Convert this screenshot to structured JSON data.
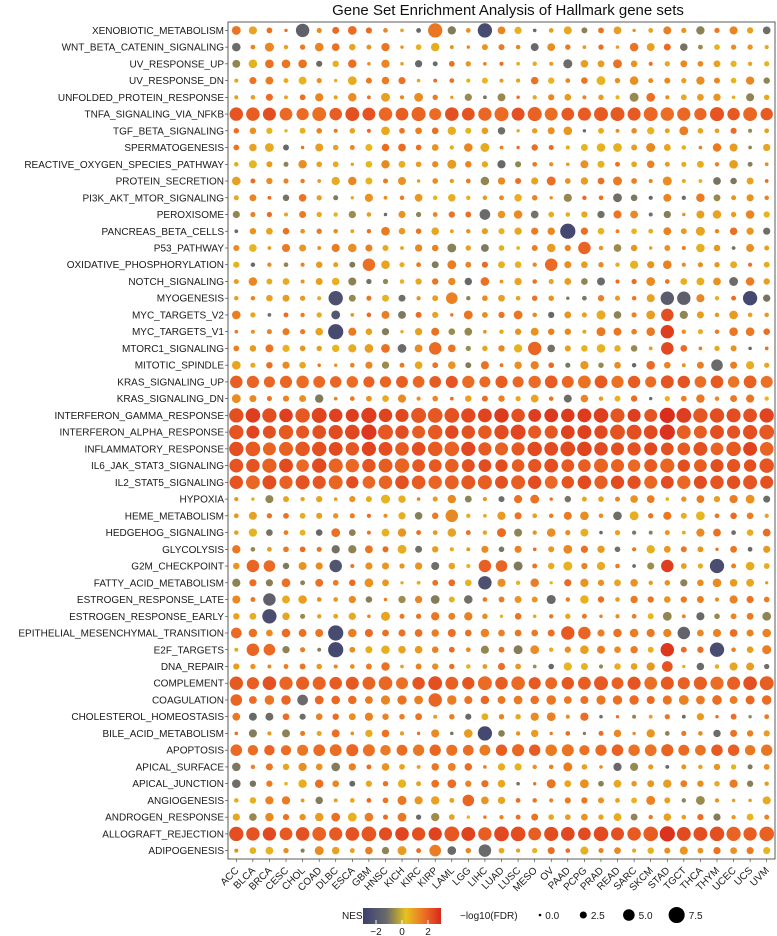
{
  "chart_data": {
    "type": "bubble-grid",
    "title": "Gene Set Enrichment Analysis of Hallmark gene sets",
    "xlabel": "",
    "ylabel": "",
    "x_categories": [
      "ACC",
      "BLCA",
      "BRCA",
      "CESC",
      "CHOL",
      "COAD",
      "DLBC",
      "ESCA",
      "GBM",
      "HNSC",
      "KICH",
      "KIRC",
      "KIRP",
      "LAML",
      "LGG",
      "LIHC",
      "LUAD",
      "LUSC",
      "MESO",
      "OV",
      "PAAD",
      "PCPG",
      "PRAD",
      "READ",
      "SARC",
      "SKCM",
      "STAD",
      "TGCT",
      "THCA",
      "THYM",
      "UCEC",
      "UCS",
      "UVM"
    ],
    "y_categories": [
      "XENOBIOTIC_METABOLISM",
      "WNT_BETA_CATENIN_SIGNALING",
      "UV_RESPONSE_UP",
      "UV_RESPONSE_DN",
      "UNFOLDED_PROTEIN_RESPONSE",
      "TNFA_SIGNALING_VIA_NFKB",
      "TGF_BETA_SIGNALING",
      "SPERMATOGENESIS",
      "REACTIVE_OXYGEN_SPECIES_PATHWAY",
      "PROTEIN_SECRETION",
      "PI3K_AKT_MTOR_SIGNALING",
      "PEROXISOME",
      "PANCREAS_BETA_CELLS",
      "P53_PATHWAY",
      "OXIDATIVE_PHOSPHORYLATION",
      "NOTCH_SIGNALING",
      "MYOGENESIS",
      "MYC_TARGETS_V2",
      "MYC_TARGETS_V1",
      "MTORC1_SIGNALING",
      "MITOTIC_SPINDLE",
      "KRAS_SIGNALING_UP",
      "KRAS_SIGNALING_DN",
      "INTERFERON_GAMMA_RESPONSE",
      "INTERFERON_ALPHA_RESPONSE",
      "INFLAMMATORY_RESPONSE",
      "IL6_JAK_STAT3_SIGNALING",
      "IL2_STAT5_SIGNALING",
      "HYPOXIA",
      "HEME_METABOLISM",
      "HEDGEHOG_SIGNALING",
      "GLYCOLYSIS",
      "G2M_CHECKPOINT",
      "FATTY_ACID_METABOLISM",
      "ESTROGEN_RESPONSE_LATE",
      "ESTROGEN_RESPONSE_EARLY",
      "EPITHELIAL_MESENCHYMAL_TRANSITION",
      "E2F_TARGETS",
      "DNA_REPAIR",
      "COMPLEMENT",
      "COAGULATION",
      "CHOLESTEROL_HOMEOSTASIS",
      "BILE_ACID_METABOLISM",
      "APOPTOSIS",
      "APICAL_SURFACE",
      "APICAL_JUNCTION",
      "ANGIOGENESIS",
      "ANDROGEN_RESPONSE",
      "ALLOGRAFT_REJECTION",
      "ADIPOGENESIS"
    ],
    "color_legend": {
      "title": "NES",
      "ticks": [
        -2,
        0,
        2
      ],
      "range": [
        -3,
        3
      ],
      "colors": [
        "#3a3f72",
        "#6a6a6a",
        "#e6c21e",
        "#eb6a24",
        "#d8281c"
      ]
    },
    "size_legend": {
      "title": "−log10(FDR)",
      "values": [
        0.0,
        2.5,
        5.0,
        7.5
      ],
      "tick_labels": [
        "0.0",
        "2.5",
        "5.0",
        "7.5"
      ]
    },
    "grid": false,
    "legend_position": "bottom",
    "cells": [
      {
        "x": "ACC",
        "y": "TNFA_SIGNALING_VIA_NFKB",
        "nes": 2.2,
        "size": 6
      },
      {
        "x": "ACC",
        "y": "INTERFERON_GAMMA_RESPONSE",
        "nes": 2.3,
        "size": 6.5
      },
      {
        "x": "ACC",
        "y": "INTERFERON_ALPHA_RESPONSE",
        "nes": 2.2,
        "size": 6.5
      },
      {
        "x": "ACC",
        "y": "INFLAMMATORY_RESPONSE",
        "nes": 2.3,
        "size": 6.5
      },
      {
        "x": "ACC",
        "y": "IL6_JAK_STAT3_SIGNALING",
        "nes": 2.2,
        "size": 6.2
      },
      {
        "x": "ACC",
        "y": "IL2_STAT5_SIGNALING",
        "nes": 2.2,
        "size": 6
      },
      {
        "x": "ACC",
        "y": "ALLOGRAFT_REJECTION",
        "nes": 2.3,
        "size": 6.5
      },
      {
        "x": "ACC",
        "y": "COMPLEMENT",
        "nes": 2.1,
        "size": 6
      },
      {
        "x": "ACC",
        "y": "KRAS_SIGNALING_UP",
        "nes": 2.0,
        "size": 5.5
      },
      {
        "x": "ACC",
        "y": "APOPTOSIS",
        "nes": 1.8,
        "size": 5
      },
      {
        "x": "ACC",
        "y": "EPITHELIAL_MESENCHYMAL_TRANSITION",
        "nes": 1.8,
        "size": 4.5
      },
      {
        "x": "ACC",
        "y": "COAGULATION",
        "nes": 1.9,
        "size": 5
      },
      {
        "x": "ACC",
        "y": "XENOBIOTIC_METABOLISM",
        "nes": 1.6,
        "size": 3.5
      },
      {
        "x": "BRCA",
        "y": "ESTROGEN_RESPONSE_EARLY",
        "nes": -2.4,
        "size": 6.5
      },
      {
        "x": "BRCA",
        "y": "ESTROGEN_RESPONSE_LATE",
        "nes": -1.6,
        "size": 5.5
      },
      {
        "x": "BLCA",
        "y": "G2M_CHECKPOINT",
        "nes": 1.9,
        "size": 5.5
      },
      {
        "x": "BRCA",
        "y": "G2M_CHECKPOINT",
        "nes": 1.8,
        "size": 5
      },
      {
        "x": "BLCA",
        "y": "E2F_TARGETS",
        "nes": 1.9,
        "size": 5.5
      },
      {
        "x": "BRCA",
        "y": "E2F_TARGETS",
        "nes": 1.8,
        "size": 5
      },
      {
        "x": "CHOL",
        "y": "XENOBIOTIC_METABOLISM",
        "nes": -1.6,
        "size": 6
      },
      {
        "x": "CHOL",
        "y": "COAGULATION",
        "nes": -1.2,
        "size": 4.5
      },
      {
        "x": "DLBC",
        "y": "MYOGENESIS",
        "nes": -2.3,
        "size": 6.5
      },
      {
        "x": "DLBC",
        "y": "MYC_TARGETS_V1",
        "nes": -2.5,
        "size": 7
      },
      {
        "x": "DLBC",
        "y": "MYC_TARGETS_V2",
        "nes": -2.0,
        "size": 3.5
      },
      {
        "x": "DLBC",
        "y": "G2M_CHECKPOINT",
        "nes": -2.1,
        "size": 5.5
      },
      {
        "x": "DLBC",
        "y": "EPITHELIAL_MESENCHYMAL_TRANSITION",
        "nes": -2.5,
        "size": 7
      },
      {
        "x": "DLBC",
        "y": "E2F_TARGETS",
        "nes": -2.6,
        "size": 7
      },
      {
        "x": "GBM",
        "y": "INTERFERON_GAMMA_RESPONSE",
        "nes": 2.6,
        "size": 7
      },
      {
        "x": "GBM",
        "y": "INTERFERON_ALPHA_RESPONSE",
        "nes": 2.7,
        "size": 7
      },
      {
        "x": "GBM",
        "y": "OXIDATIVE_PHOSPHORYLATION",
        "nes": 1.7,
        "size": 5.5
      },
      {
        "x": "KIRP",
        "y": "XENOBIOTIC_METABOLISM",
        "nes": 1.6,
        "size": 6.5
      },
      {
        "x": "KIRP",
        "y": "MTORC1_SIGNALING",
        "nes": 1.8,
        "size": 5.5
      },
      {
        "x": "KIRP",
        "y": "COAGULATION",
        "nes": 1.9,
        "size": 6
      },
      {
        "x": "KIRP",
        "y": "ADIPOGENESIS",
        "nes": 1.5,
        "size": 5
      },
      {
        "x": "LAML",
        "y": "MYOGENESIS",
        "nes": 1.4,
        "size": 5
      },
      {
        "x": "LAML",
        "y": "HEME_METABOLISM",
        "nes": 1.3,
        "size": 5.5
      },
      {
        "x": "LGG",
        "y": "INTERFERON_GAMMA_RESPONSE",
        "nes": 2.4,
        "size": 6.5
      },
      {
        "x": "LGG",
        "y": "ANGIOGENESIS",
        "nes": 1.9,
        "size": 5
      },
      {
        "x": "LIHC",
        "y": "XENOBIOTIC_METABOLISM",
        "nes": -2.5,
        "size": 6.5
      },
      {
        "x": "LIHC",
        "y": "FATTY_ACID_METABOLISM",
        "nes": -2.3,
        "size": 6
      },
      {
        "x": "LIHC",
        "y": "BILE_ACID_METABOLISM",
        "nes": -2.6,
        "size": 6.5
      },
      {
        "x": "LIHC",
        "y": "ADIPOGENESIS",
        "nes": -1.2,
        "size": 5.5
      },
      {
        "x": "LIHC",
        "y": "PEROXISOME",
        "nes": -1.2,
        "size": 4.5
      },
      {
        "x": "LIHC",
        "y": "G2M_CHECKPOINT",
        "nes": 2.0,
        "size": 5.5
      },
      {
        "x": "LUAD",
        "y": "G2M_CHECKPOINT",
        "nes": 1.9,
        "size": 5
      },
      {
        "x": "MESO",
        "y": "MTORC1_SIGNALING",
        "nes": 1.9,
        "size": 6
      },
      {
        "x": "OV",
        "y": "OXIDATIVE_PHOSPHORYLATION",
        "nes": 1.8,
        "size": 5.5
      },
      {
        "x": "PAAD",
        "y": "PANCREAS_BETA_CELLS",
        "nes": -2.6,
        "size": 7
      },
      {
        "x": "PAAD",
        "y": "EPITHELIAL_MESENCHYMAL_TRANSITION",
        "nes": 2.1,
        "size": 6
      },
      {
        "x": "PCPG",
        "y": "P53_PATHWAY",
        "nes": 1.9,
        "size": 5.5
      },
      {
        "x": "PCPG",
        "y": "EPITHELIAL_MESENCHYMAL_TRANSITION",
        "nes": 1.9,
        "size": 5.5
      },
      {
        "x": "STAD",
        "y": "MYC_TARGETS_V1",
        "nes": 2.6,
        "size": 6
      },
      {
        "x": "STAD",
        "y": "MYC_TARGETS_V2",
        "nes": 2.3,
        "size": 5.5
      },
      {
        "x": "STAD",
        "y": "MTORC1_SIGNALING",
        "nes": 2.4,
        "size": 5.5
      },
      {
        "x": "STAD",
        "y": "MYOGENESIS",
        "nes": -1.8,
        "size": 6
      },
      {
        "x": "STAD",
        "y": "G2M_CHECKPOINT",
        "nes": 2.6,
        "size": 5.5
      },
      {
        "x": "STAD",
        "y": "E2F_TARGETS",
        "nes": 2.7,
        "size": 6
      },
      {
        "x": "STAD",
        "y": "DNA_REPAIR",
        "nes": 2.2,
        "size": 4.5
      },
      {
        "x": "STAD",
        "y": "INTERFERON_GAMMA_RESPONSE",
        "nes": 2.9,
        "size": 7
      },
      {
        "x": "STAD",
        "y": "INTERFERON_ALPHA_RESPONSE",
        "nes": 2.8,
        "size": 7
      },
      {
        "x": "STAD",
        "y": "ALLOGRAFT_REJECTION",
        "nes": 2.8,
        "size": 7
      },
      {
        "x": "TGCT",
        "y": "MYOGENESIS",
        "nes": -1.6,
        "size": 6
      },
      {
        "x": "TGCT",
        "y": "EPITHELIAL_MESENCHYMAL_TRANSITION",
        "nes": -1.5,
        "size": 5.5
      },
      {
        "x": "THYM",
        "y": "G2M_CHECKPOINT",
        "nes": -2.4,
        "size": 6.5
      },
      {
        "x": "THYM",
        "y": "E2F_TARGETS",
        "nes": -2.4,
        "size": 6.5
      },
      {
        "x": "THYM",
        "y": "MITOTIC_SPINDLE",
        "nes": -1.2,
        "size": 5
      },
      {
        "x": "UCS",
        "y": "MYOGENESIS",
        "nes": -2.6,
        "size": 6.5
      }
    ]
  }
}
